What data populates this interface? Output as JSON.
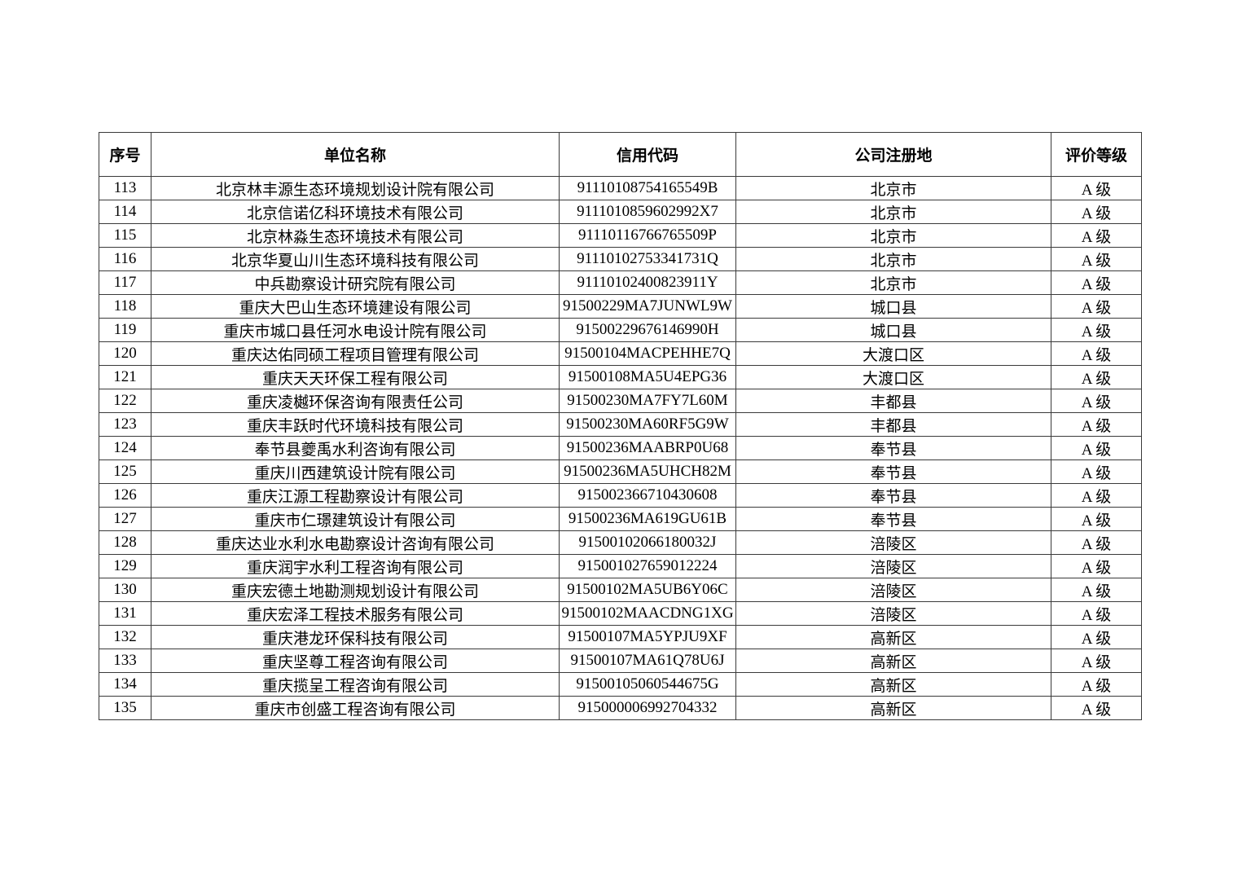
{
  "colors": {
    "background": "#ffffff",
    "border": "#3a3a3a",
    "text": "#000000"
  },
  "document": {
    "table": {
      "headers": [
        "序号",
        "单位名称",
        "信用代码",
        "公司注册地",
        "评价等级"
      ],
      "rows": [
        [
          "113",
          "北京林丰源生态环境规划设计院有限公司",
          "91110108754165549B",
          "北京市",
          "A 级"
        ],
        [
          "114",
          "北京信诺亿科环境技术有限公司",
          "9111010859602992X7",
          "北京市",
          "A 级"
        ],
        [
          "115",
          "北京林淼生态环境技术有限公司",
          "91110116766765509P",
          "北京市",
          "A 级"
        ],
        [
          "116",
          "北京华夏山川生态环境科技有限公司",
          "91110102753341731Q",
          "北京市",
          "A 级"
        ],
        [
          "117",
          "中兵勘察设计研究院有限公司",
          "91110102400823911Y",
          "北京市",
          "A 级"
        ],
        [
          "118",
          "重庆大巴山生态环境建设有限公司",
          "91500229MA7JUNWL9W",
          "城口县",
          "A 级"
        ],
        [
          "119",
          "重庆市城口县任河水电设计院有限公司",
          "91500229676146990H",
          "城口县",
          "A 级"
        ],
        [
          "120",
          "重庆达佑同硕工程项目管理有限公司",
          "91500104MACPEHHE7Q",
          "大渡口区",
          "A 级"
        ],
        [
          "121",
          "重庆天天环保工程有限公司",
          "91500108MA5U4EPG36",
          "大渡口区",
          "A 级"
        ],
        [
          "122",
          "重庆凌樾环保咨询有限责任公司",
          "91500230MA7FY7L60M",
          "丰都县",
          "A 级"
        ],
        [
          "123",
          "重庆丰跃时代环境科技有限公司",
          "91500230MA60RF5G9W",
          "丰都县",
          "A 级"
        ],
        [
          "124",
          "奉节县夔禹水利咨询有限公司",
          "91500236MAABRP0U68",
          "奉节县",
          "A 级"
        ],
        [
          "125",
          "重庆川西建筑设计院有限公司",
          "91500236MA5UHCH82M",
          "奉节县",
          "A 级"
        ],
        [
          "126",
          "重庆江源工程勘察设计有限公司",
          "915002366710430608",
          "奉节县",
          "A 级"
        ],
        [
          "127",
          "重庆市仁璟建筑设计有限公司",
          "91500236MA619GU61B",
          "奉节县",
          "A 级"
        ],
        [
          "128",
          "重庆达业水利水电勘察设计咨询有限公司",
          "91500102066180032J",
          "涪陵区",
          "A 级"
        ],
        [
          "129",
          "重庆润宇水利工程咨询有限公司",
          "915001027659012224",
          "涪陵区",
          "A 级"
        ],
        [
          "130",
          "重庆宏德土地勘测规划设计有限公司",
          "91500102MA5UB6Y06C",
          "涪陵区",
          "A 级"
        ],
        [
          "131",
          "重庆宏泽工程技术服务有限公司",
          "91500102MAACDNG1XG",
          "涪陵区",
          "A 级"
        ],
        [
          "132",
          "重庆港龙环保科技有限公司",
          "91500107MA5YPJU9XF",
          "高新区",
          "A 级"
        ],
        [
          "133",
          "重庆坚尊工程咨询有限公司",
          "91500107MA61Q78U6J",
          "高新区",
          "A 级"
        ],
        [
          "134",
          "重庆揽呈工程咨询有限公司",
          "91500105060544675G",
          "高新区",
          "A 级"
        ],
        [
          "135",
          "重庆市创盛工程咨询有限公司",
          "915000006992704332",
          "高新区",
          "A 级"
        ]
      ]
    }
  }
}
